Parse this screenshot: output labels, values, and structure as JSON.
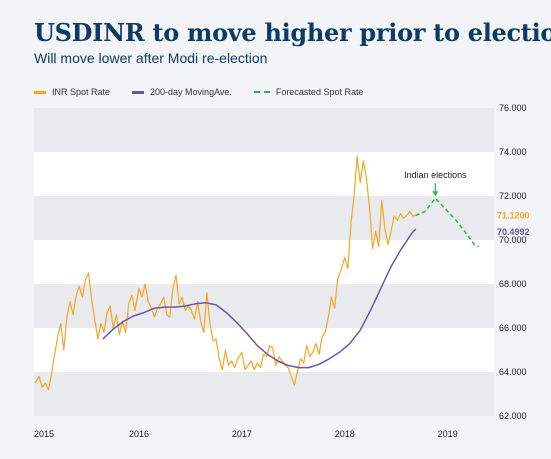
{
  "header": {
    "title": "USDINR to move higher prior to election",
    "subtitle": "Will move lower after Modi re-election"
  },
  "colors": {
    "title": "#0b3b66",
    "inr": "#f5a623",
    "ma": "#6b57a8",
    "forecast": "#2db24a",
    "band": "#e9eaee"
  },
  "chart_data": {
    "type": "line",
    "legend": [
      "INR Spot Rate",
      "200-day MovingAve.",
      "Forecasted Spot Rate"
    ],
    "legend_placement": "top-left",
    "x_ticks": [
      "2015",
      "2016",
      "2017",
      "2018",
      "2019"
    ],
    "x_range": [
      2015.0,
      2019.45
    ],
    "y_ticks": [
      "62.000",
      "64.000",
      "66.000",
      "68.000",
      "70.000",
      "72.000",
      "74.000",
      "76.000"
    ],
    "ylim": [
      62,
      76
    ],
    "y_axis_position": "right",
    "series": [
      {
        "name": "INR Spot Rate",
        "x": [
          2014.99,
          2015.03,
          2015.06,
          2015.09,
          2015.12,
          2015.15,
          2015.18,
          2015.21,
          2015.24,
          2015.27,
          2015.3,
          2015.33,
          2015.36,
          2015.39,
          2015.42,
          2015.45,
          2015.48,
          2015.51,
          2015.54,
          2015.57,
          2015.6,
          2015.63,
          2015.66,
          2015.69,
          2015.72,
          2015.75,
          2015.78,
          2015.81,
          2015.84,
          2015.87,
          2015.9,
          2015.93,
          2015.96,
          2016.0,
          2016.03,
          2016.06,
          2016.09,
          2016.12,
          2016.15,
          2016.18,
          2016.21,
          2016.24,
          2016.27,
          2016.3,
          2016.33,
          2016.36,
          2016.39,
          2016.42,
          2016.45,
          2016.48,
          2016.51,
          2016.54,
          2016.57,
          2016.6,
          2016.63,
          2016.66,
          2016.69,
          2016.72,
          2016.75,
          2016.78,
          2016.81,
          2016.84,
          2016.87,
          2016.9,
          2016.93,
          2016.96,
          2017.0,
          2017.03,
          2017.06,
          2017.09,
          2017.12,
          2017.15,
          2017.18,
          2017.21,
          2017.24,
          2017.27,
          2017.3,
          2017.33,
          2017.36,
          2017.39,
          2017.42,
          2017.45,
          2017.48,
          2017.51,
          2017.54,
          2017.57,
          2017.6,
          2017.63,
          2017.66,
          2017.69,
          2017.72,
          2017.75,
          2017.78,
          2017.81,
          2017.84,
          2017.87,
          2017.9,
          2017.93,
          2017.96,
          2018.0,
          2018.03,
          2018.06,
          2018.09,
          2018.12,
          2018.15,
          2018.18,
          2018.21,
          2018.24,
          2018.27,
          2018.3,
          2018.33,
          2018.36,
          2018.39,
          2018.42,
          2018.45,
          2018.48,
          2018.51,
          2018.54,
          2018.57,
          2018.6,
          2018.63,
          2018.66,
          2018.69
        ],
        "values": [
          63.5,
          63.8,
          63.3,
          63.5,
          63.2,
          63.9,
          64.8,
          65.6,
          66.2,
          65.0,
          66.5,
          67.2,
          66.6,
          67.5,
          67.9,
          67.4,
          68.2,
          68.5,
          67.3,
          66.4,
          65.5,
          66.2,
          65.8,
          66.7,
          67.0,
          66.0,
          66.6,
          65.7,
          66.3,
          65.8,
          67.1,
          67.5,
          66.8,
          67.8,
          67.4,
          68.0,
          67.2,
          66.9,
          66.5,
          66.9,
          67.1,
          67.4,
          66.6,
          66.5,
          67.8,
          68.4,
          67.1,
          67.4,
          66.8,
          67.0,
          66.8,
          66.4,
          67.2,
          66.3,
          65.8,
          67.6,
          66.2,
          65.4,
          65.5,
          64.6,
          64.1,
          65.0,
          64.3,
          64.5,
          64.2,
          64.6,
          64.9,
          64.1,
          64.3,
          64.5,
          64.1,
          64.4,
          64.2,
          64.8,
          64.7,
          65.2,
          65.1,
          64.3,
          64.7,
          64.5,
          64.3,
          64.2,
          63.8,
          63.4,
          64.0,
          64.6,
          64.4,
          65.2,
          64.7,
          64.9,
          65.3,
          64.8,
          65.6,
          65.8,
          66.5,
          67.4,
          66.9,
          68.2,
          68.6,
          69.2,
          68.7,
          70.8,
          72.0,
          73.8,
          72.6,
          73.6,
          72.8,
          71.5,
          69.6,
          70.4,
          69.7,
          71.8,
          70.5,
          69.8,
          70.4,
          71.1,
          70.9,
          71.2,
          71.0,
          71.1,
          71.3,
          71.1,
          71.12
        ]
      },
      {
        "name": "200-day MovingAve.",
        "x": [
          2015.65,
          2015.75,
          2015.85,
          2015.95,
          2016.05,
          2016.15,
          2016.25,
          2016.35,
          2016.45,
          2016.55,
          2016.65,
          2016.75,
          2016.85,
          2016.95,
          2017.05,
          2017.15,
          2017.25,
          2017.35,
          2017.45,
          2017.55,
          2017.65,
          2017.75,
          2017.85,
          2017.95,
          2018.05,
          2018.15,
          2018.25,
          2018.35,
          2018.45,
          2018.55,
          2018.65,
          2018.69
        ],
        "values": [
          65.5,
          65.95,
          66.3,
          66.55,
          66.7,
          66.9,
          66.95,
          66.95,
          67.0,
          67.1,
          67.15,
          67.05,
          66.7,
          66.25,
          65.75,
          65.2,
          64.8,
          64.5,
          64.3,
          64.2,
          64.2,
          64.35,
          64.6,
          64.9,
          65.3,
          65.9,
          66.8,
          67.8,
          68.8,
          69.6,
          70.3,
          70.5
        ]
      },
      {
        "name": "Forecasted Spot Rate",
        "x": [
          2018.69,
          2018.78,
          2018.88,
          2018.98,
          2019.08,
          2019.18,
          2019.26,
          2019.3
        ],
        "values": [
          71.12,
          71.3,
          71.9,
          71.4,
          70.9,
          70.3,
          69.8,
          69.7
        ]
      }
    ],
    "annotations": [
      {
        "text": "Indian elections",
        "x": 2018.88,
        "y": 71.9
      }
    ],
    "end_labels": [
      {
        "text": "71.1200",
        "series": "INR Spot Rate"
      },
      {
        "text": "70.4992",
        "series": "200-day MovingAve."
      }
    ]
  }
}
